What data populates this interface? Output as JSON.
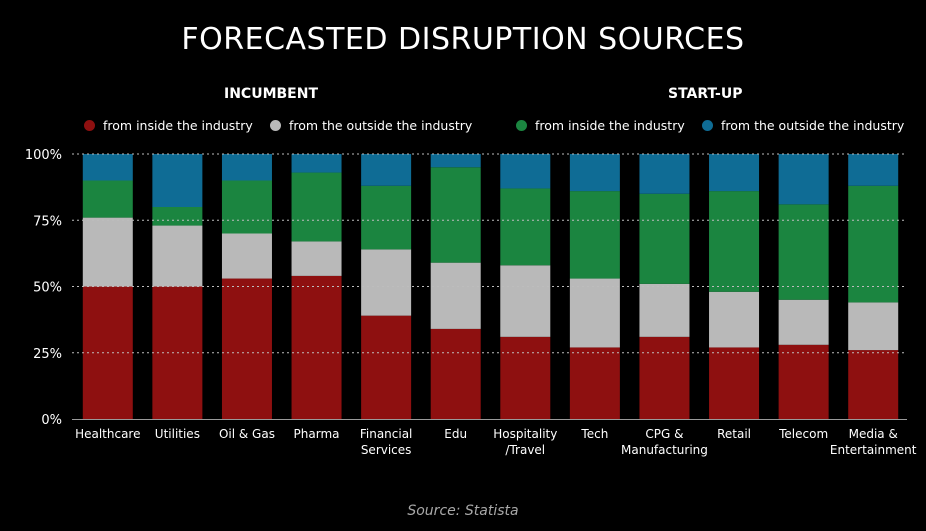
{
  "title": "FORECASTED DISRUPTION SOURCES",
  "groups": {
    "incumbent": "INCUMBENT",
    "startup": "START-UP"
  },
  "legend": [
    {
      "label": "from inside the industry",
      "color": "#8e1010"
    },
    {
      "label": "from the outside the industry",
      "color": "#b9b9b9"
    },
    {
      "label": "from inside the industry",
      "color": "#1b8540"
    },
    {
      "label": "from the outside the industry",
      "color": "#0f6c95"
    }
  ],
  "source": "Source:  Statista",
  "chart_data": {
    "type": "bar",
    "stacked": true,
    "categories": [
      [
        "Healthcare"
      ],
      [
        "Utilities"
      ],
      [
        "Oil & Gas"
      ],
      [
        "Pharma"
      ],
      [
        "Financial",
        "Services"
      ],
      [
        "Edu"
      ],
      [
        "Hospitality",
        "/Travel"
      ],
      [
        "Tech"
      ],
      [
        "CPG &",
        "Manufacturing"
      ],
      [
        "Retail"
      ],
      [
        "Telecom"
      ],
      [
        "Media &",
        "Entertainment"
      ]
    ],
    "series": [
      {
        "group": "INCUMBENT",
        "name": "from inside the industry",
        "color": "#8e1010",
        "values": [
          50,
          50,
          53,
          54,
          39,
          34,
          31,
          27,
          31,
          27,
          28,
          26
        ]
      },
      {
        "group": "INCUMBENT",
        "name": "from the outside the industry",
        "color": "#b9b9b9",
        "values": [
          26,
          23,
          17,
          13,
          25,
          25,
          27,
          26,
          20,
          21,
          17,
          18
        ]
      },
      {
        "group": "START-UP",
        "name": "from inside the industry",
        "color": "#1b8540",
        "values": [
          14,
          7,
          20,
          26,
          24,
          36,
          29,
          33,
          34,
          38,
          36,
          44
        ]
      },
      {
        "group": "START-UP",
        "name": "from the outside the industry",
        "color": "#0f6c95",
        "values": [
          10,
          20,
          10,
          7,
          12,
          5,
          13,
          14,
          15,
          14,
          19,
          12
        ]
      }
    ],
    "yticks": [
      "0%",
      "25%",
      "50%",
      "75%",
      "100%"
    ],
    "ylim": [
      0,
      100
    ],
    "grid": true,
    "legend_position": "top"
  }
}
